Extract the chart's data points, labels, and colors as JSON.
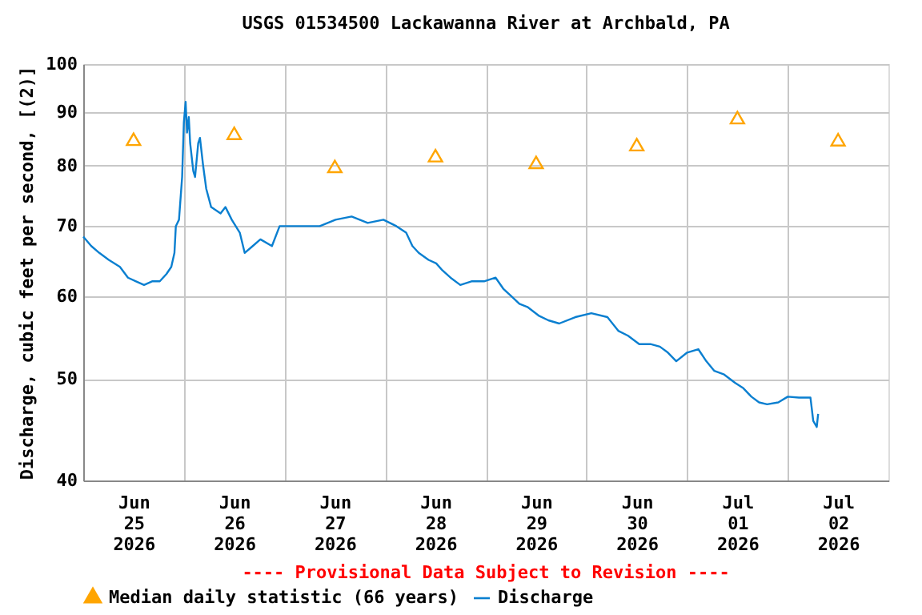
{
  "chart_data": {
    "type": "line",
    "title": "USGS 01534500 Lackawanna River at Archbald, PA",
    "ylabel": "Discharge, cubic feet per second, [(2)]",
    "log": true,
    "grid": true,
    "legend": "bottom",
    "xlim": [
      "2026-06-25T00:00",
      "2026-07-03T00:00"
    ],
    "xticks": [
      {
        "value": "2026-06-25T12:00",
        "label": "Jun\n25\n2026"
      },
      {
        "value": "2026-06-26T00:00",
        "label": null
      },
      {
        "value": "2026-06-26T12:00",
        "label": "Jun\n26\n2026"
      },
      {
        "value": "2026-06-27T00:00",
        "label": null
      },
      {
        "value": "2026-06-27T12:00",
        "label": "Jun\n27\n2026"
      },
      {
        "value": "2026-06-28T00:00",
        "label": null
      },
      {
        "value": "2026-06-28T12:00",
        "label": "Jun\n28\n2026"
      },
      {
        "value": "2026-06-29T00:00",
        "label": null
      },
      {
        "value": "2026-06-29T12:00",
        "label": "Jun\n29\n2026"
      },
      {
        "value": "2026-06-30T00:00",
        "label": null
      },
      {
        "value": "2026-06-30T12:00",
        "label": "Jun\n30\n2026"
      },
      {
        "value": "2026-07-01T00:00",
        "label": null
      },
      {
        "value": "2026-07-01T12:00",
        "label": "Jul\n01\n2026"
      },
      {
        "value": "2026-07-02T00:00",
        "label": null
      },
      {
        "value": "2026-07-02T12:00",
        "label": "Jul\n02\n2026"
      }
    ],
    "ylim": [
      40,
      100
    ],
    "yticks": [
      40,
      50,
      60,
      70,
      80,
      90,
      100
    ],
    "annotations": [
      "---- Provisional Data Subject to Revision ----"
    ],
    "series": [
      {
        "name": "Median daily statistic (66 years)",
        "type": "scatter",
        "marker": "triangle",
        "color": "#ffa500",
        "x": [
          "2026-06-25T12:00",
          "2026-06-26T12:00",
          "2026-06-27T12:00",
          "2026-06-28T12:00",
          "2026-06-29T12:00",
          "2026-06-30T12:00",
          "2026-07-01T12:00",
          "2026-07-02T12:00"
        ],
        "values": [
          84.4,
          85.5,
          79.5,
          81.4,
          80.2,
          83.4,
          88.5,
          84.3
        ]
      },
      {
        "name": "Discharge",
        "line_style": "solid",
        "color": "#0a7fd0",
        "x": [
          "2026-06-25T00:00",
          "2026-06-25T01:55",
          "2026-06-25T03:50",
          "2026-06-25T06:05",
          "2026-06-25T08:45",
          "2026-06-25T10:40",
          "2026-06-25T12:35",
          "2026-06-25T14:30",
          "2026-06-25T16:25",
          "2026-06-25T18:15",
          "2026-06-25T19:50",
          "2026-06-25T21:00",
          "2026-06-25T21:45",
          "2026-06-25T22:05",
          "2026-06-25T22:50",
          "2026-06-25T23:35",
          "2026-06-26T00:00",
          "2026-06-26T00:25",
          "2026-06-26T00:45",
          "2026-06-26T01:10",
          "2026-06-26T01:30",
          "2026-06-26T02:15",
          "2026-06-26T02:40",
          "2026-06-26T03:25",
          "2026-06-26T03:50",
          "2026-06-26T04:35",
          "2026-06-26T05:20",
          "2026-06-26T06:30",
          "2026-06-26T08:45",
          "2026-06-26T09:55",
          "2026-06-26T11:25",
          "2026-06-26T13:20",
          "2026-06-26T14:30",
          "2026-06-26T16:25",
          "2026-06-26T18:15",
          "2026-06-26T21:00",
          "2026-06-26T22:50",
          "2026-06-27T01:30",
          "2026-06-27T04:35",
          "2026-06-27T08:25",
          "2026-06-27T12:10",
          "2026-06-27T16:00",
          "2026-06-27T19:50",
          "2026-06-27T23:35",
          "2026-06-28T02:40",
          "2026-06-28T05:00",
          "2026-06-28T06:30",
          "2026-06-28T08:00",
          "2026-06-28T10:20",
          "2026-06-28T12:10",
          "2026-06-28T13:40",
          "2026-06-28T15:35",
          "2026-06-28T17:55",
          "2026-06-28T20:35",
          "2026-06-28T23:35",
          "2026-06-29T02:20",
          "2026-06-29T04:10",
          "2026-06-29T06:05",
          "2026-06-29T08:00",
          "2026-06-29T09:55",
          "2026-06-29T12:35",
          "2026-06-29T14:55",
          "2026-06-29T17:30",
          "2026-06-29T21:20",
          "2026-06-30T01:10",
          "2026-06-30T05:00",
          "2026-06-30T07:35",
          "2026-06-30T09:55",
          "2026-06-30T12:35",
          "2026-06-30T15:15",
          "2026-06-30T17:30",
          "2026-06-30T19:25",
          "2026-06-30T21:25",
          "2026-07-01T00:00",
          "2026-07-01T02:40",
          "2026-07-01T04:35",
          "2026-07-01T06:30",
          "2026-07-01T08:50",
          "2026-07-01T11:25",
          "2026-07-01T13:25",
          "2026-07-01T15:20",
          "2026-07-01T17:10",
          "2026-07-01T19:05",
          "2026-07-01T21:45",
          "2026-07-02T00:00",
          "2026-07-02T02:40",
          "2026-07-02T05:25",
          "2026-07-02T06:05",
          "2026-07-02T06:55",
          "2026-07-02T07:15"
        ],
        "values": [
          68.4,
          67,
          66,
          65,
          64,
          62.5,
          62,
          61.5,
          62,
          62,
          63,
          64,
          66,
          70,
          71,
          78,
          88,
          92,
          86,
          89,
          84,
          79,
          78,
          84,
          85,
          80,
          76,
          73,
          72,
          73,
          71,
          69,
          66,
          67,
          68,
          67,
          70,
          70,
          70,
          70,
          71,
          71.5,
          70.5,
          71,
          70,
          69,
          67,
          66,
          65,
          64.5,
          63.5,
          62.5,
          61.5,
          62,
          62,
          62.5,
          61,
          60,
          59,
          58.6,
          57.5,
          56.9,
          56.5,
          57.3,
          57.8,
          57.3,
          55.6,
          55,
          54,
          54,
          53.7,
          53,
          52,
          53,
          53.4,
          52,
          50.9,
          50.5,
          49.6,
          49,
          48.1,
          47.5,
          47.3,
          47.5,
          48.1,
          48,
          48,
          45.6,
          45,
          46.3
        ]
      }
    ]
  }
}
